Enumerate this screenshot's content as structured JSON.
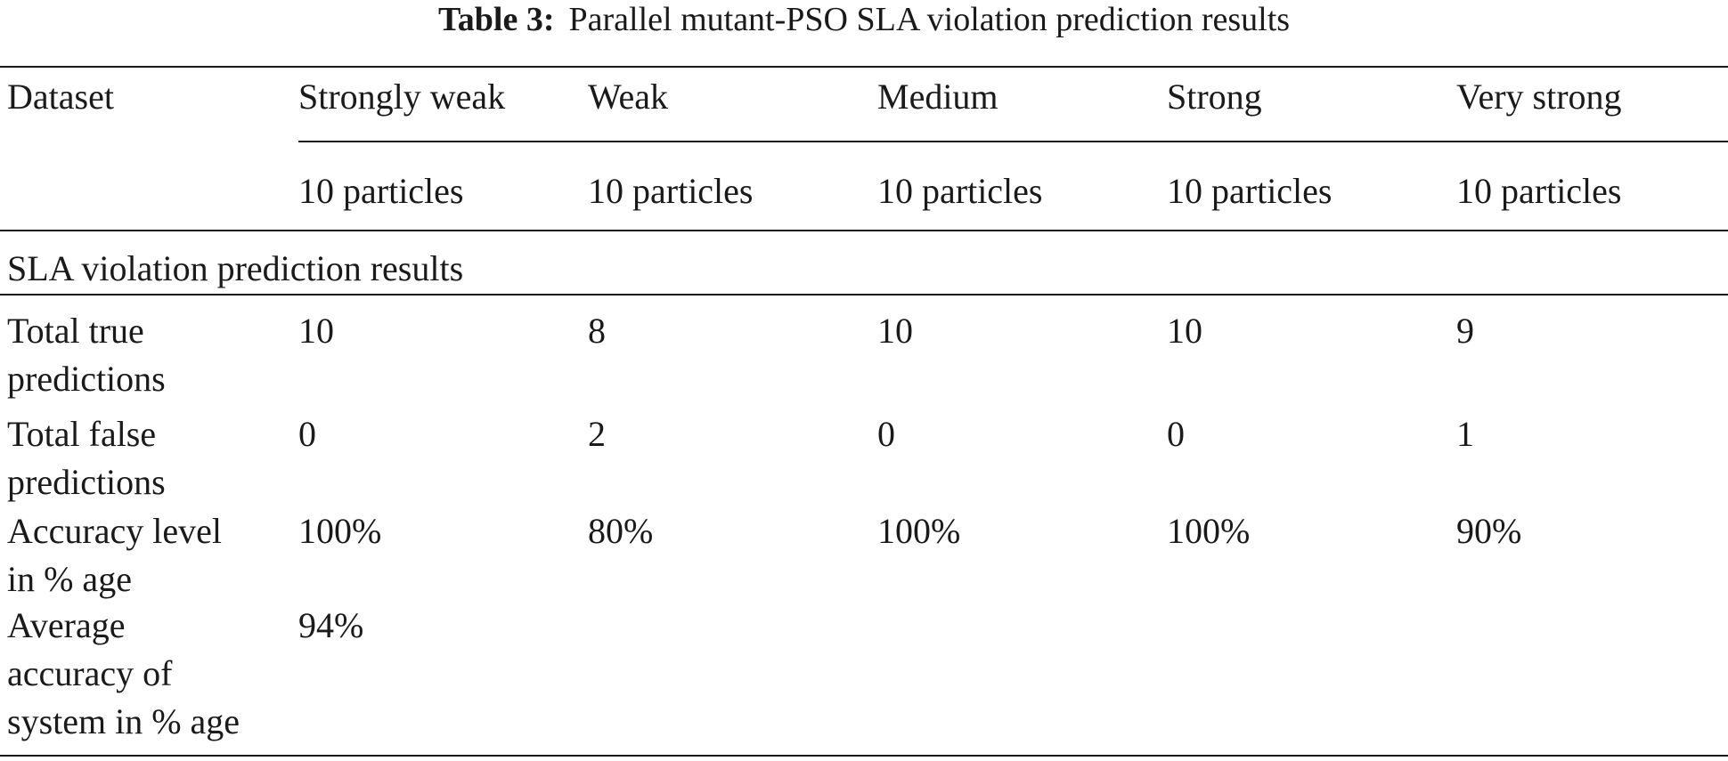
{
  "caption": {
    "label": "Table 3:",
    "text": "Parallel mutant-PSO SLA violation prediction results"
  },
  "table": {
    "dataset_header": "Dataset",
    "columns": [
      "Strongly weak",
      "Weak",
      "Medium",
      "Strong",
      "Very strong"
    ],
    "particles": [
      "10 particles",
      "10 particles",
      "10 particles",
      "10 particles",
      "10 particles"
    ],
    "section_title": "SLA violation prediction results",
    "rows": [
      {
        "label_lines": [
          "Total true",
          "predictions"
        ],
        "values": [
          "10",
          "8",
          "10",
          "10",
          "9"
        ]
      },
      {
        "label_lines": [
          "Total false",
          "predictions"
        ],
        "values": [
          "0",
          "2",
          "0",
          "0",
          "1"
        ]
      },
      {
        "label_lines": [
          "Accuracy level",
          "in % age"
        ],
        "values": [
          "100%",
          "80%",
          "100%",
          "100%",
          "90%"
        ]
      }
    ],
    "average": {
      "label_lines": [
        "Average",
        "accuracy of",
        "system in % age"
      ],
      "value": "94%"
    }
  }
}
